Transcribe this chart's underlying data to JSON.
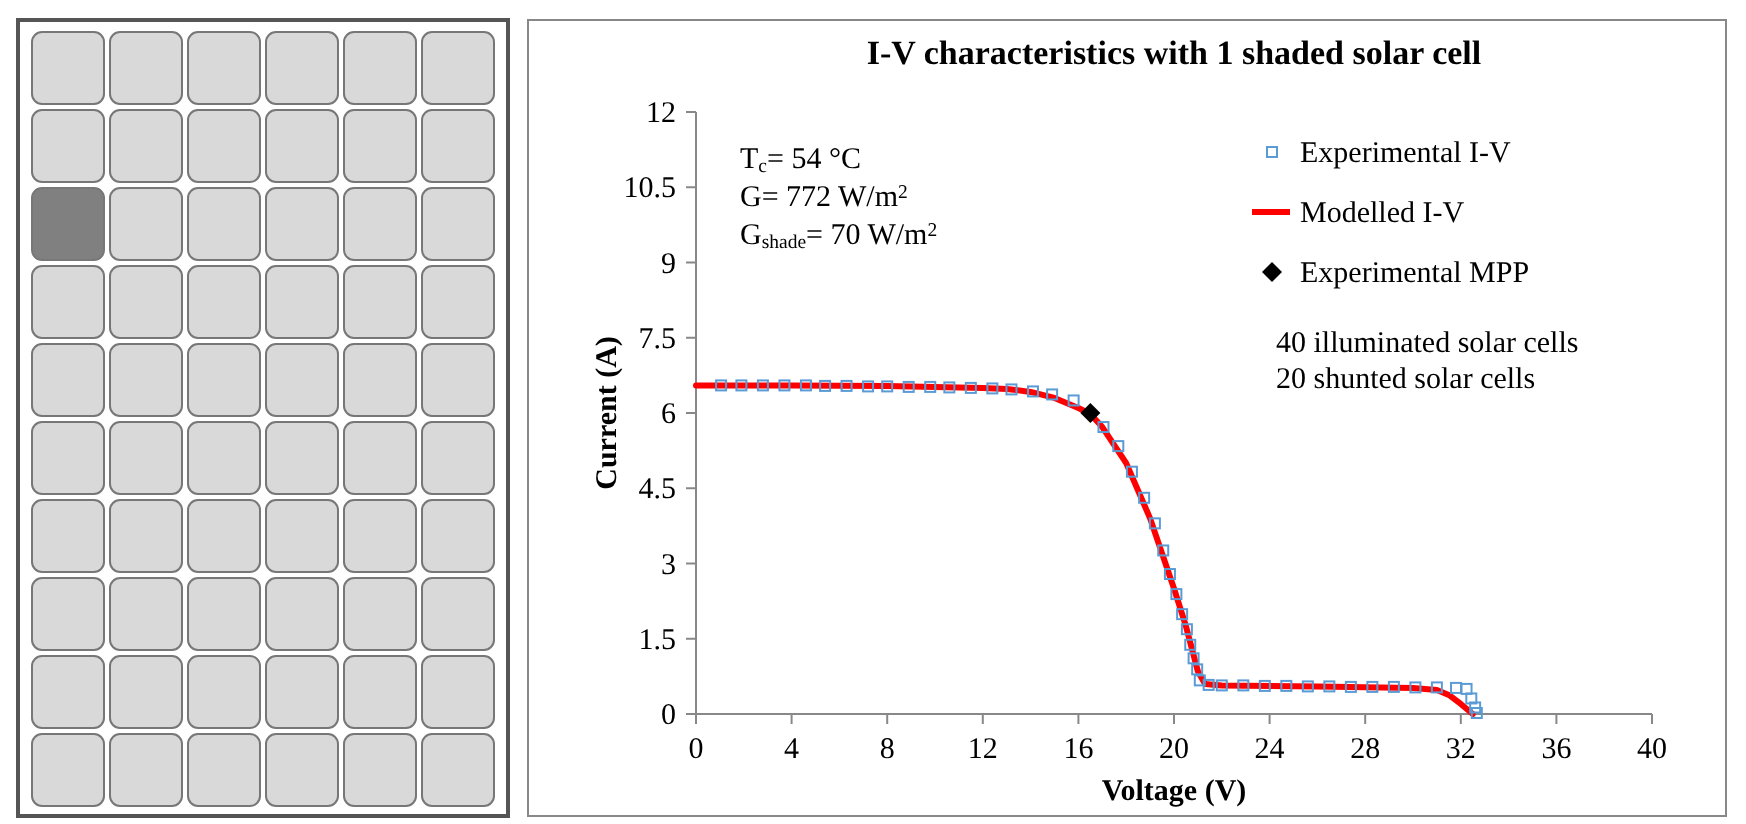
{
  "chart_data": {
    "type": "scatter",
    "title": "I-V characteristics with 1 shaded solar cell",
    "xlabel": "Voltage (V)",
    "ylabel": "Current (A)",
    "xlim": [
      0,
      40
    ],
    "xticks": [
      0,
      4,
      8,
      12,
      16,
      20,
      24,
      28,
      32,
      36,
      40
    ],
    "ylim": [
      0,
      12
    ],
    "yticks": [
      0,
      1.5,
      3,
      4.5,
      6,
      7.5,
      9,
      10.5,
      12
    ],
    "grid": false,
    "legend": "top right",
    "annotations": [
      "T$_{c}$= 54 °C",
      "G= 772 W/m$^{2}$",
      "G$_{shade}$= 70 W/m$^{2}$",
      "40 illuminated solar cells",
      "20 shunted solar cells"
    ],
    "series": [
      {
        "name": "Experimental I-V",
        "marker": "square",
        "color": "#5b9bd5",
        "x": [
          1.05,
          1.9,
          2.8,
          3.7,
          4.6,
          5.4,
          6.3,
          7.2,
          8.0,
          8.9,
          9.8,
          10.6,
          11.5,
          12.4,
          13.2,
          14.1,
          14.9,
          15.8,
          17.05,
          17.67,
          18.24,
          18.75,
          19.2,
          19.55,
          19.83,
          20.1,
          20.34,
          20.54,
          20.68,
          20.82,
          20.97,
          21.08,
          21.45,
          22.0,
          22.9,
          23.8,
          24.7,
          25.6,
          26.5,
          27.4,
          28.3,
          29.2,
          30.1,
          31.0,
          31.8,
          32.24,
          32.44,
          32.6,
          32.67
        ],
        "values": [
          6.55,
          6.55,
          6.55,
          6.55,
          6.55,
          6.54,
          6.54,
          6.53,
          6.53,
          6.52,
          6.52,
          6.51,
          6.5,
          6.49,
          6.47,
          6.43,
          6.37,
          6.25,
          5.72,
          5.34,
          4.83,
          4.31,
          3.8,
          3.26,
          2.79,
          2.39,
          1.99,
          1.69,
          1.38,
          1.11,
          0.89,
          0.67,
          0.58,
          0.57,
          0.57,
          0.56,
          0.56,
          0.55,
          0.55,
          0.54,
          0.54,
          0.54,
          0.53,
          0.53,
          0.52,
          0.5,
          0.31,
          0.13,
          0.02
        ]
      },
      {
        "name": "Modelled I-V",
        "type": "line",
        "marker": "none",
        "color": "#ff0000",
        "x": [
          0,
          4,
          8,
          12,
          13,
          14,
          15,
          16,
          16.5,
          17,
          18,
          19,
          20,
          20.5,
          21,
          21.3,
          22,
          26,
          30,
          31,
          31.5,
          32,
          32.5
        ],
        "values": [
          6.55,
          6.55,
          6.54,
          6.5,
          6.48,
          6.42,
          6.3,
          6.1,
          5.98,
          5.72,
          5.0,
          3.9,
          2.5,
          1.75,
          0.85,
          0.6,
          0.57,
          0.55,
          0.52,
          0.48,
          0.38,
          0.2,
          0
        ]
      },
      {
        "name": "Experimental MPP",
        "marker": "diamond",
        "color": "#000000",
        "x": [
          16.5
        ],
        "values": [
          6.0
        ]
      }
    ]
  }
}
